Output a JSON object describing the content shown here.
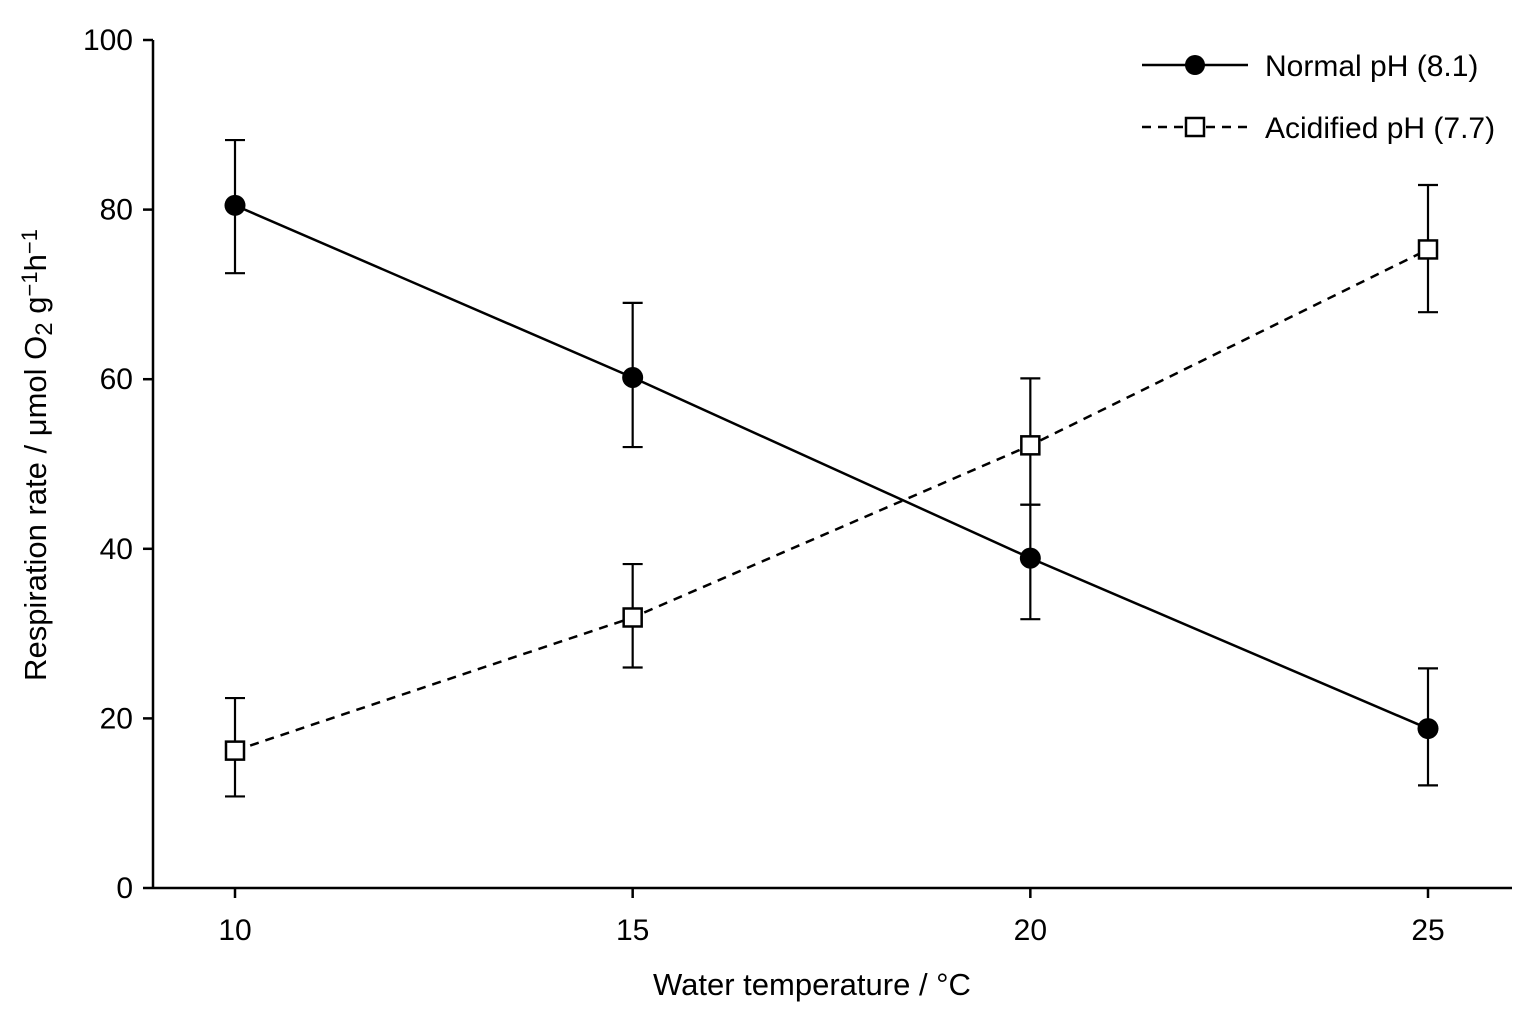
{
  "chart_data": {
    "type": "line",
    "title": "",
    "xlabel": "Water temperature / °C",
    "ylabel": {
      "prefix": "Respiration rate / μmol O",
      "sub": "2",
      "mid1": " g",
      "sup1": "−1",
      "mid2": "h",
      "sup2": "−1"
    },
    "xlim": [
      9,
      26
    ],
    "ylim": [
      0,
      100
    ],
    "x_ticks": [
      10,
      15,
      20,
      25
    ],
    "y_ticks": [
      0,
      20,
      40,
      60,
      80,
      100
    ],
    "x_tick_labels": [
      "10",
      "15",
      "20",
      "25"
    ],
    "y_tick_labels": [
      "0",
      "20",
      "40",
      "60",
      "80",
      "100"
    ],
    "grid": false,
    "legend_position": "top-right",
    "series": [
      {
        "name": "Normal pH (8.1)",
        "marker": "filled-circle",
        "line_style": "solid",
        "color": "#000000",
        "x": [
          10,
          15,
          20,
          25
        ],
        "y": [
          80.5,
          60.2,
          38.9,
          18.8
        ],
        "err_low": [
          72.5,
          52.0,
          31.7,
          12.1
        ],
        "err_high": [
          88.2,
          69.0,
          45.2,
          25.9
        ]
      },
      {
        "name": "Acidified pH (7.7)",
        "marker": "open-square",
        "line_style": "dashed",
        "color": "#000000",
        "x": [
          10,
          15,
          20,
          25
        ],
        "y": [
          16.2,
          31.9,
          52.2,
          75.3
        ],
        "err_low": [
          10.8,
          26.0,
          45.2,
          67.9
        ],
        "err_high": [
          22.4,
          38.2,
          60.1,
          82.9
        ]
      }
    ]
  }
}
